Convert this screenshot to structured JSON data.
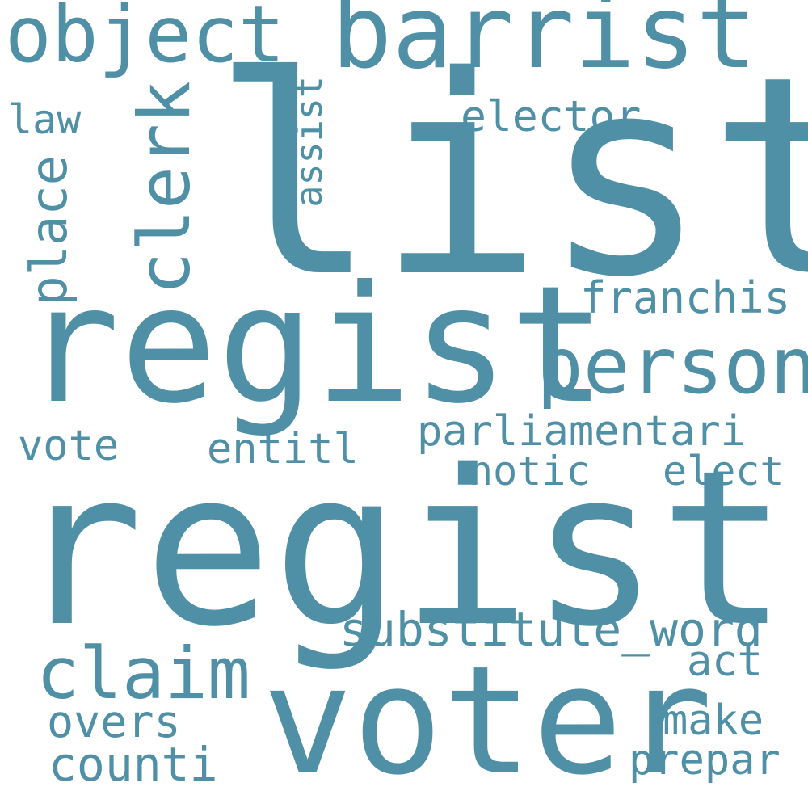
{
  "background": "#ffffff",
  "word_color": "#5090a6",
  "words": [
    {
      "id": "list",
      "text": "list",
      "orientation": "horizontal"
    },
    {
      "id": "registr",
      "text": "registr",
      "orientation": "horizontal"
    },
    {
      "id": "regist",
      "text": "regist",
      "orientation": "horizontal"
    },
    {
      "id": "voter",
      "text": "voter",
      "orientation": "horizontal"
    },
    {
      "id": "barrist",
      "text": "barrist",
      "orientation": "horizontal"
    },
    {
      "id": "object",
      "text": "object",
      "orientation": "horizontal"
    },
    {
      "id": "person",
      "text": "person",
      "orientation": "horizontal"
    },
    {
      "id": "claim",
      "text": "claim",
      "orientation": "horizontal"
    },
    {
      "id": "clerk",
      "text": "clerk",
      "orientation": "vertical"
    },
    {
      "id": "substitute_word",
      "text": "substitute_word",
      "orientation": "horizontal"
    },
    {
      "id": "parliamentari",
      "text": "parliamentari",
      "orientation": "horizontal"
    },
    {
      "id": "place",
      "text": "place",
      "orientation": "vertical"
    },
    {
      "id": "franchis",
      "text": "franchis",
      "orientation": "horizontal"
    },
    {
      "id": "elector",
      "text": "elector",
      "orientation": "horizontal"
    },
    {
      "id": "entitl",
      "text": "entitl",
      "orientation": "horizontal"
    },
    {
      "id": "vote",
      "text": "vote",
      "orientation": "horizontal"
    },
    {
      "id": "notic",
      "text": "notic",
      "orientation": "horizontal"
    },
    {
      "id": "elect",
      "text": "elect",
      "orientation": "horizontal"
    },
    {
      "id": "counti",
      "text": "counti",
      "orientation": "horizontal"
    },
    {
      "id": "overs",
      "text": "overs",
      "orientation": "horizontal"
    },
    {
      "id": "make",
      "text": "make",
      "orientation": "horizontal"
    },
    {
      "id": "prepar",
      "text": "prepar",
      "orientation": "horizontal"
    },
    {
      "id": "act",
      "text": "act",
      "orientation": "horizontal"
    },
    {
      "id": "assist",
      "text": "assist",
      "orientation": "vertical"
    },
    {
      "id": "law",
      "text": "law",
      "orientation": "horizontal"
    }
  ]
}
